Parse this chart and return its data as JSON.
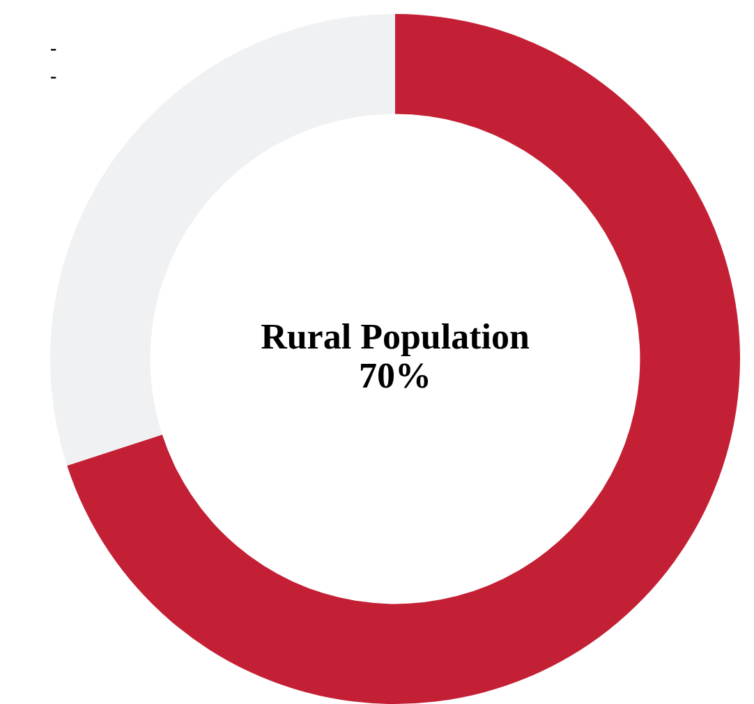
{
  "chart_data": {
    "type": "donut",
    "title": "Rural Population",
    "categories": [
      null,
      null
    ],
    "values": [
      70,
      30
    ],
    "colors": [
      "#c42035",
      "#f0f1f3"
    ],
    "value_labels": [
      "70%",
      null
    ],
    "annotations": [
      "-",
      "-"
    ],
    "legend": false
  }
}
